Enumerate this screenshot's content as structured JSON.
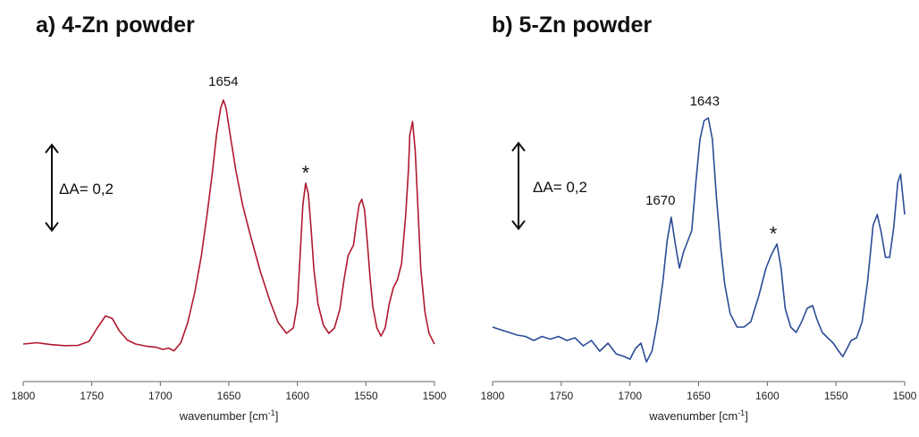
{
  "chart_data": [
    {
      "type": "line",
      "title": "a) 4-Zn powder",
      "xlabel": "wavenumber [cm",
      "xlabel_sup": "-1",
      "xlabel_end": "]",
      "xlim": [
        1800,
        1500
      ],
      "x_reversed": true,
      "ylabel": "",
      "grid": false,
      "xticks": [
        "1800",
        "1750",
        "1700",
        "1650",
        "1600",
        "1550",
        "1500"
      ],
      "scale_bar": {
        "label": "ΔA= 0,2",
        "value": 0.2
      },
      "series": [
        {
          "color": "#b0182e",
          "x": [
            1800,
            1790,
            1780,
            1770,
            1760,
            1752,
            1746,
            1740,
            1735,
            1730,
            1724,
            1718,
            1710,
            1703,
            1698,
            1694,
            1690,
            1685,
            1680,
            1675,
            1670,
            1666,
            1662,
            1659,
            1656,
            1654,
            1652,
            1649,
            1645,
            1640,
            1634,
            1627,
            1620,
            1614,
            1608,
            1603,
            1600,
            1598,
            1596,
            1594,
            1592,
            1590,
            1588,
            1585,
            1581,
            1577,
            1573,
            1569,
            1566,
            1563,
            1561,
            1559,
            1557,
            1555,
            1553,
            1551,
            1549,
            1547,
            1545,
            1542,
            1539,
            1536,
            1533,
            1530,
            1527,
            1524,
            1521,
            1519,
            1518,
            1516,
            1514,
            1512,
            1510,
            1507,
            1504,
            1500
          ],
          "y": [
            0.0,
            0.005,
            -0.002,
            -0.006,
            -0.005,
            0.01,
            0.06,
            0.105,
            0.095,
            0.05,
            0.015,
            0.0,
            -0.008,
            -0.012,
            -0.02,
            -0.015,
            -0.025,
            0.005,
            0.08,
            0.19,
            0.33,
            0.48,
            0.64,
            0.78,
            0.88,
            0.91,
            0.88,
            0.78,
            0.65,
            0.52,
            0.4,
            0.27,
            0.16,
            0.08,
            0.04,
            0.06,
            0.15,
            0.33,
            0.52,
            0.6,
            0.56,
            0.43,
            0.28,
            0.15,
            0.07,
            0.04,
            0.06,
            0.13,
            0.24,
            0.33,
            0.35,
            0.37,
            0.45,
            0.52,
            0.54,
            0.5,
            0.38,
            0.25,
            0.14,
            0.06,
            0.03,
            0.06,
            0.15,
            0.21,
            0.24,
            0.3,
            0.48,
            0.65,
            0.78,
            0.83,
            0.72,
            0.5,
            0.28,
            0.12,
            0.04,
            0.0
          ]
        }
      ],
      "annotations": [
        {
          "label": "1654",
          "x": 1654
        },
        {
          "label": "*",
          "x": 1594
        }
      ]
    },
    {
      "type": "line",
      "title": "b) 5-Zn powder",
      "xlabel": "wavenumber [cm",
      "xlabel_sup": "-1",
      "xlabel_end": "]",
      "xlim": [
        1800,
        1500
      ],
      "x_reversed": true,
      "ylabel": "",
      "grid": false,
      "xticks": [
        "1800",
        "1750",
        "1700",
        "1650",
        "1600",
        "1550",
        "1500"
      ],
      "scale_bar": {
        "label": "ΔA= 0,2",
        "value": 0.2
      },
      "series": [
        {
          "color": "#2b4c95",
          "x": [
            1800,
            1794,
            1788,
            1782,
            1776,
            1770,
            1764,
            1758,
            1752,
            1746,
            1740,
            1734,
            1728,
            1722,
            1716,
            1710,
            1704,
            1700,
            1696,
            1692,
            1688,
            1684,
            1680,
            1676,
            1673,
            1670,
            1667,
            1664,
            1661,
            1658,
            1655,
            1652,
            1649,
            1646,
            1643,
            1640,
            1637,
            1634,
            1631,
            1627,
            1622,
            1617,
            1612,
            1606,
            1601,
            1597,
            1593,
            1590,
            1587,
            1583,
            1579,
            1575,
            1571,
            1567,
            1564,
            1560,
            1556,
            1552,
            1548,
            1545,
            1542,
            1539,
            1535,
            1531,
            1527,
            1523,
            1520,
            1517,
            1514,
            1511,
            1508,
            1505,
            1503,
            1500
          ],
          "y": [
            0.08,
            0.07,
            0.06,
            0.05,
            0.045,
            0.03,
            0.045,
            0.035,
            0.045,
            0.03,
            0.04,
            0.01,
            0.03,
            -0.01,
            0.02,
            -0.02,
            -0.03,
            -0.04,
            0.0,
            0.02,
            -0.05,
            -0.01,
            0.1,
            0.25,
            0.4,
            0.49,
            0.39,
            0.3,
            0.36,
            0.4,
            0.44,
            0.62,
            0.78,
            0.85,
            0.86,
            0.78,
            0.56,
            0.38,
            0.24,
            0.13,
            0.08,
            0.08,
            0.1,
            0.2,
            0.3,
            0.35,
            0.39,
            0.3,
            0.15,
            0.08,
            0.06,
            0.1,
            0.15,
            0.16,
            0.11,
            0.06,
            0.04,
            0.02,
            -0.01,
            -0.03,
            0.0,
            0.03,
            0.04,
            0.1,
            0.25,
            0.46,
            0.5,
            0.43,
            0.34,
            0.34,
            0.45,
            0.62,
            0.65,
            0.5
          ]
        }
      ],
      "annotations": [
        {
          "label": "1670",
          "x": 1670
        },
        {
          "label": "1643",
          "x": 1643
        },
        {
          "label": "*",
          "x": 1591
        }
      ]
    }
  ]
}
